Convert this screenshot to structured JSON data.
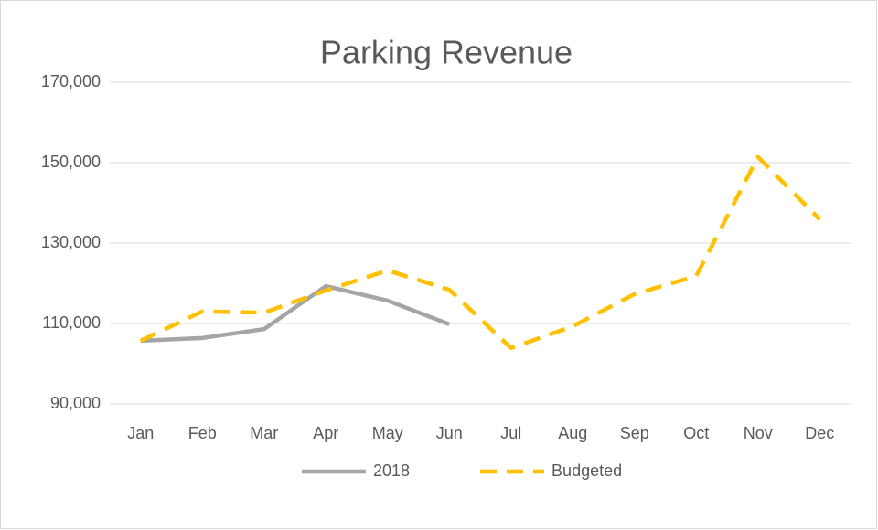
{
  "chart_data": {
    "type": "line",
    "title": "Parking Revenue",
    "categories": [
      "Jan",
      "Feb",
      "Mar",
      "Apr",
      "May",
      "Jun",
      "Jul",
      "Aug",
      "Sep",
      "Oct",
      "Nov",
      "Dec"
    ],
    "series": [
      {
        "name": "2018",
        "color": "#a5a5a5",
        "dash": false,
        "values": [
          105700,
          106400,
          108600,
          119300,
          115700,
          109800,
          null,
          null,
          null,
          null,
          null,
          null
        ]
      },
      {
        "name": "Budgeted",
        "color": "#ffc000",
        "dash": true,
        "values": [
          105700,
          113000,
          112700,
          118200,
          123200,
          118400,
          103900,
          109300,
          117300,
          121800,
          151400,
          135900
        ]
      }
    ],
    "ylim": [
      90000,
      170000
    ],
    "yticks": [
      {
        "value": 90000,
        "label": "90,000"
      },
      {
        "value": 110000,
        "label": "110,000"
      },
      {
        "value": 130000,
        "label": "130,000"
      },
      {
        "value": 150000,
        "label": "150,000"
      },
      {
        "value": 170000,
        "label": "170,000"
      }
    ],
    "grid": true,
    "legend": "bottom"
  }
}
